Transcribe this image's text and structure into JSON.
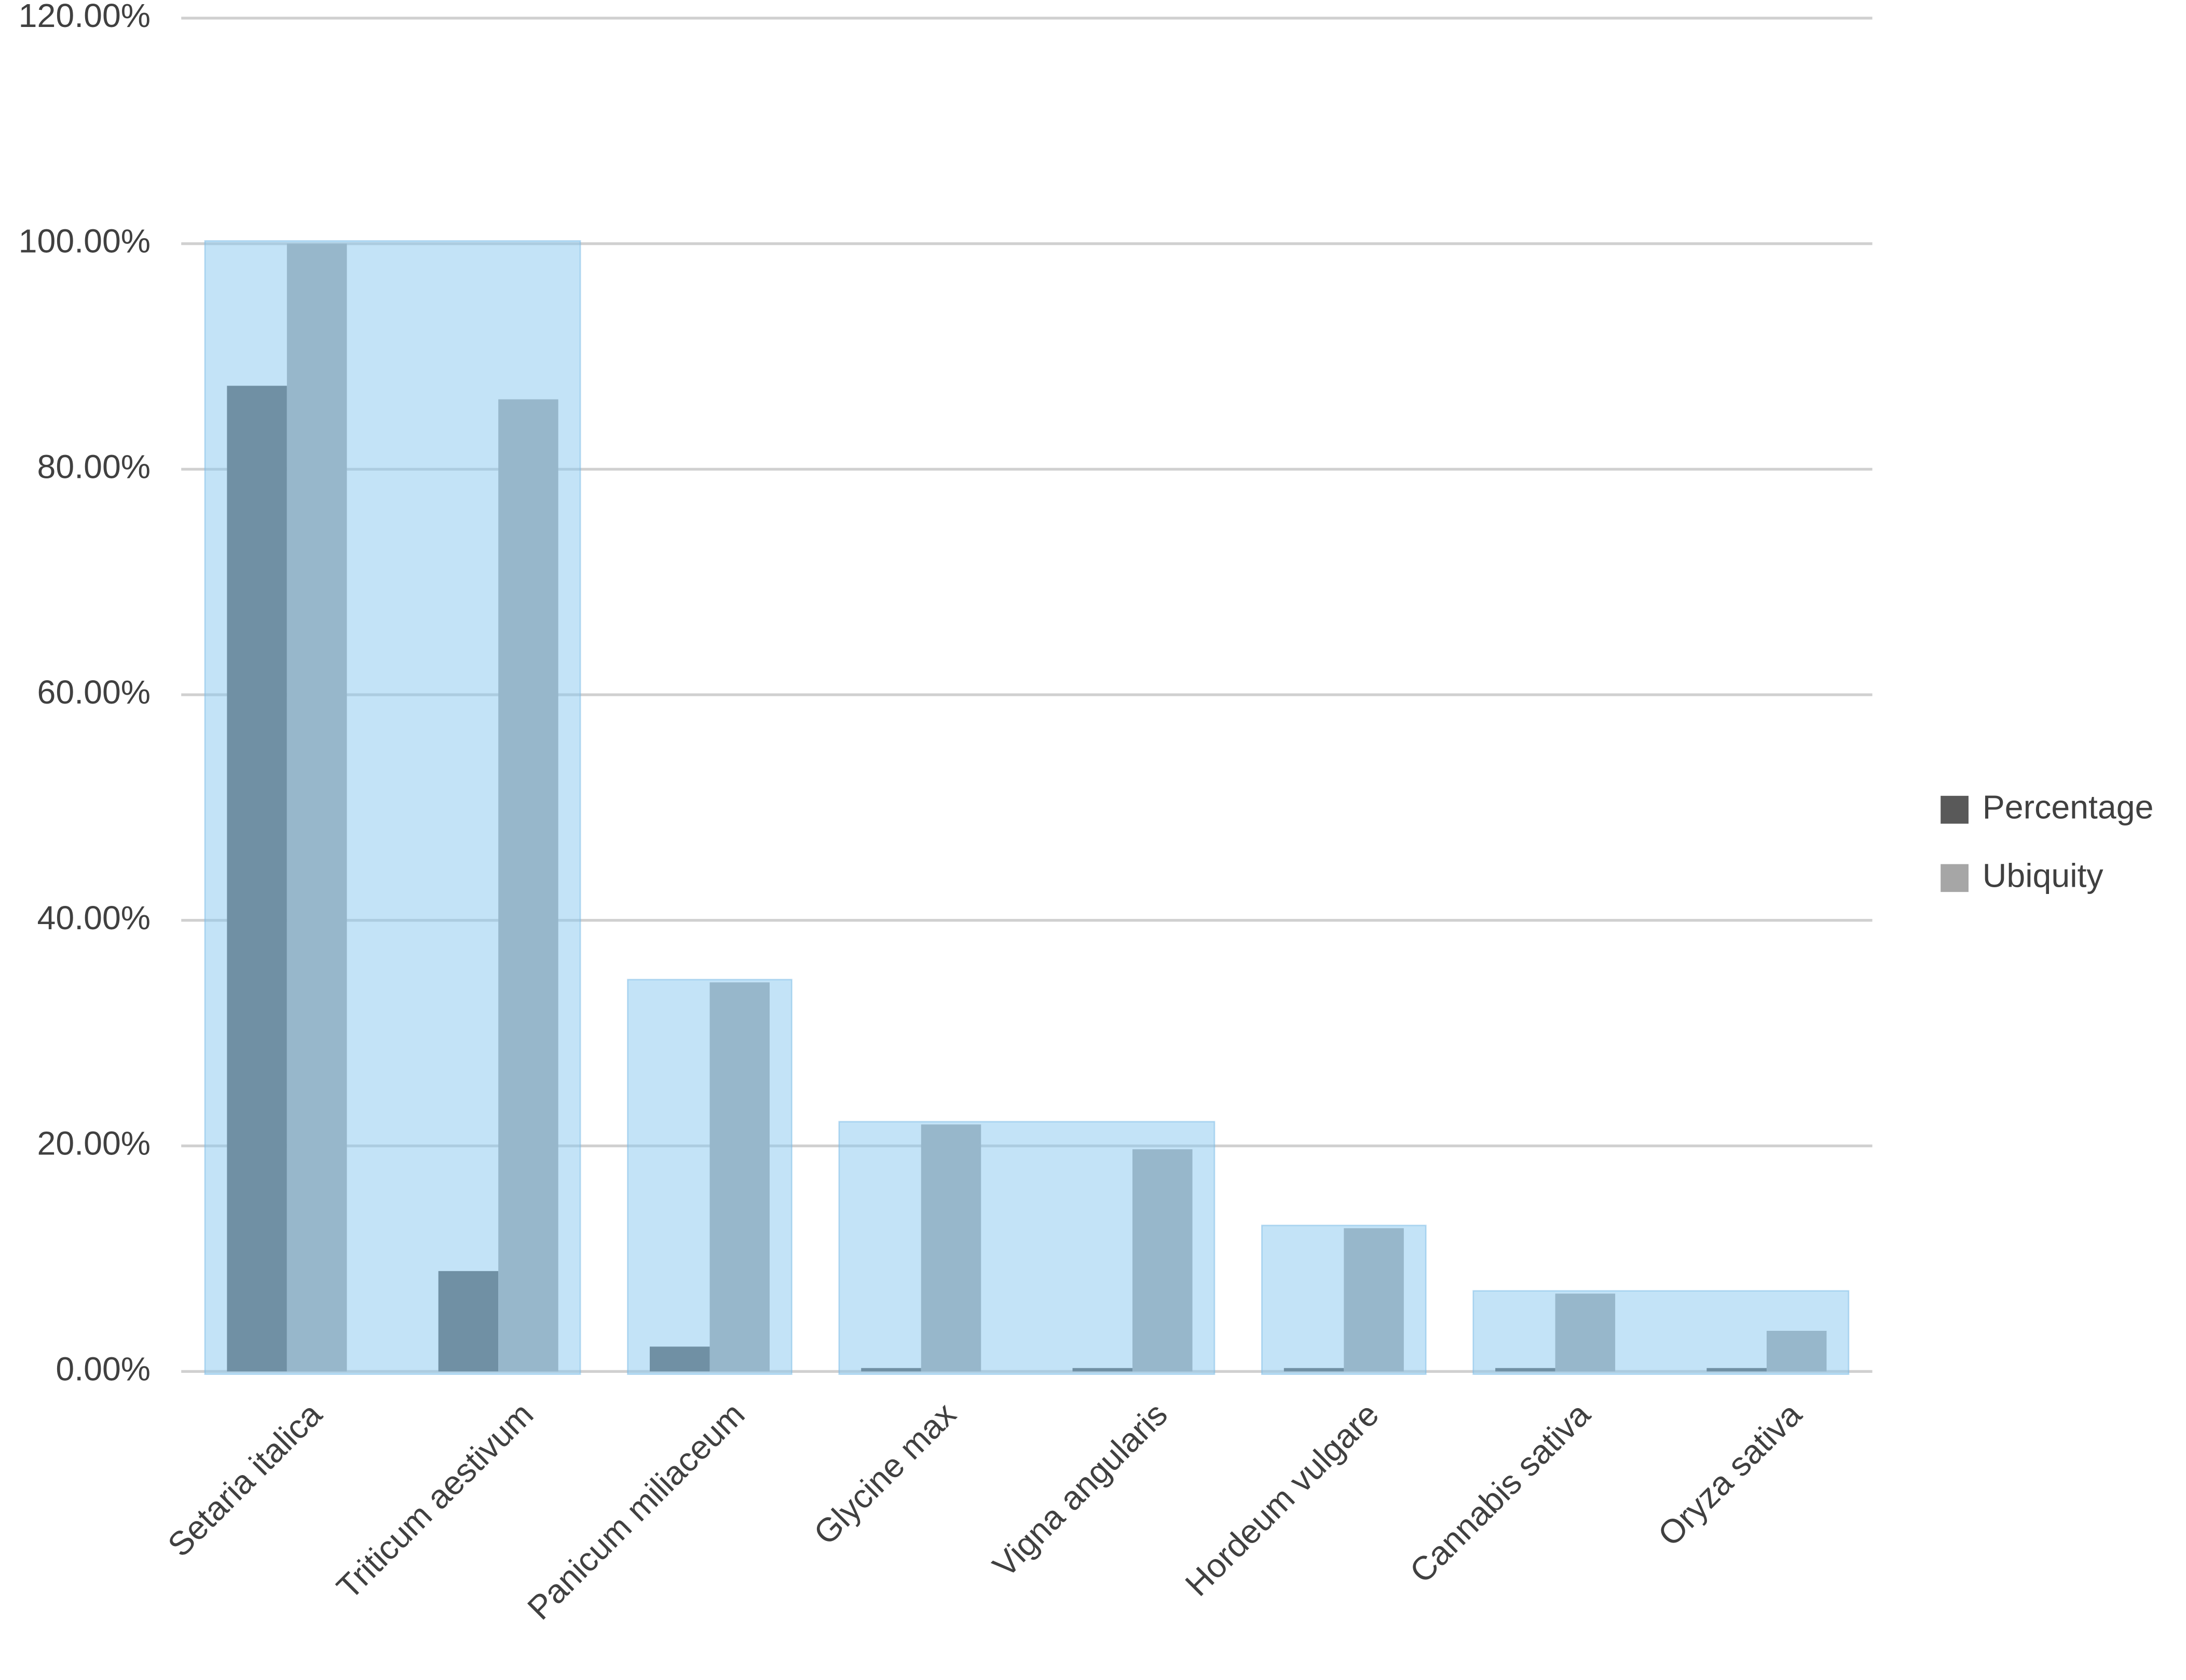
{
  "chart_data": {
    "type": "bar",
    "categories": [
      "Setaria italica",
      "Triticum aestivum",
      "Panicum miliaceum",
      "Glycine max",
      "Vigna angularis",
      "Hordeum vulgare",
      "Cannabis sativa",
      "Oryza sativa"
    ],
    "series": [
      {
        "name": "Percentage",
        "color": "#595959",
        "values": [
          87.4,
          8.9,
          2.2,
          0.3,
          0.3,
          0.3,
          0.3,
          0.3
        ]
      },
      {
        "name": "Ubiquity",
        "color": "#a6a6a6",
        "values": [
          100,
          86.2,
          34.5,
          21.9,
          19.7,
          12.7,
          6.9,
          3.6
        ]
      }
    ],
    "ylim": [
      0,
      120
    ],
    "yticks": [
      {
        "value": 0,
        "label": "0.00%"
      },
      {
        "value": 20,
        "label": "20.00%"
      },
      {
        "value": 40,
        "label": "40.00%"
      },
      {
        "value": 60,
        "label": "60.00%"
      },
      {
        "value": 80,
        "label": "80.00%"
      },
      {
        "value": 100,
        "label": "100.00%"
      },
      {
        "value": 120,
        "label": "120.00%"
      }
    ],
    "grid": true,
    "legend": "right"
  }
}
